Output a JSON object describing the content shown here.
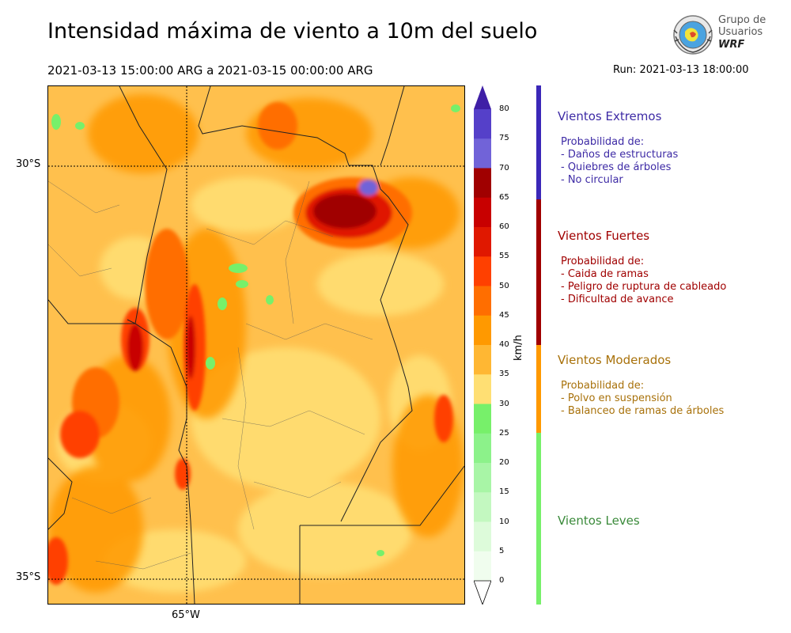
{
  "title": "Intensidad máxima de viento a 10m del suelo",
  "period": "2021-03-13 15:00:00 ARG  a  2021-03-15 00:00:00 ARG",
  "run": "Run: 2021-03-13 18:00:00",
  "logo": {
    "line1": "Grupo de",
    "line2": "Usuarios",
    "line3": "WRF"
  },
  "map": {
    "lat_labels": [
      "30°S",
      "35°S"
    ],
    "lon_labels": [
      "65°W"
    ]
  },
  "colorbar": {
    "unit": "km/h",
    "ticks": [
      "80",
      "75",
      "70",
      "65",
      "60",
      "55",
      "50",
      "45",
      "40",
      "35",
      "30",
      "25",
      "20",
      "15",
      "10",
      "5",
      "0"
    ],
    "colors": [
      "#3f1fa6",
      "#5540c9",
      "#7163d8",
      "#a00000",
      "#c80000",
      "#e01800",
      "#ff4000",
      "#ff6e00",
      "#ff9900",
      "#ffb733",
      "#ffdf73",
      "#77f06a",
      "#8cf28a",
      "#a8f5a6",
      "#c3f8c0",
      "#ddfbda",
      "#f0fdee"
    ]
  },
  "categories": [
    {
      "title": "Vientos Extremos",
      "color": "#3d2aa5",
      "band": "#3b27b8",
      "lines": [
        "Probabilidad de:",
        "- Daños de estructuras",
        "- Quiebres de árboles",
        "- No circular"
      ]
    },
    {
      "title": "Vientos Fuertes",
      "color": "#a00000",
      "band": "#a00000",
      "lines": [
        "Probabilidad de:",
        "- Caida de ramas",
        "- Peligro de ruptura de cableado",
        "- Dificultad de avance"
      ]
    },
    {
      "title": "Vientos Moderados",
      "color": "#a8710a",
      "band": "#ff9900",
      "lines": [
        "Probabilidad de:",
        "- Polvo en suspensión",
        "- Balanceo de ramas de árboles"
      ]
    },
    {
      "title": "Vientos Leves",
      "color": "#3a8a3a",
      "band": "#77f06a",
      "lines": []
    }
  ]
}
